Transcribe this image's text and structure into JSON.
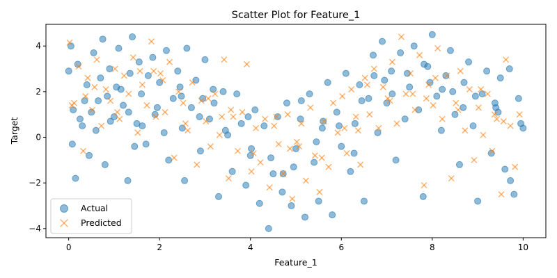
{
  "chart_data": {
    "type": "scatter",
    "title": "Scatter Plot for Feature_1",
    "xlabel": "Feature_1",
    "ylabel": "Target",
    "xlim": [
      -0.5,
      10.5
    ],
    "ylim": [
      -4.4,
      4.95
    ],
    "xticks": [
      0,
      2,
      4,
      6,
      8,
      10
    ],
    "yticks": [
      -4,
      -2,
      0,
      2,
      4
    ],
    "grid": false,
    "legend_position": "lower-left",
    "series": [
      {
        "name": "Actual",
        "marker": "circle",
        "color": "#1f77b4",
        "alpha": 0.5,
        "x": [
          0.0,
          0.05,
          0.1,
          0.15,
          0.2,
          0.3,
          0.35,
          0.4,
          0.45,
          0.5,
          0.55,
          0.6,
          0.7,
          0.75,
          0.8,
          0.85,
          0.9,
          1.0,
          1.05,
          1.1,
          1.2,
          1.3,
          1.35,
          1.4,
          1.5,
          1.55,
          1.6,
          1.7,
          1.75,
          1.85,
          1.9,
          2.0,
          2.1,
          2.15,
          2.2,
          2.3,
          2.4,
          2.5,
          2.55,
          2.6,
          2.7,
          2.8,
          2.9,
          3.0,
          3.1,
          3.2,
          3.3,
          3.4,
          3.5,
          3.6,
          3.7,
          3.8,
          3.9,
          4.0,
          4.1,
          4.2,
          4.3,
          4.4,
          4.5,
          4.6,
          4.7,
          4.8,
          4.9,
          5.0,
          5.1,
          5.2,
          5.3,
          5.4,
          5.5,
          5.6,
          5.7,
          5.8,
          5.9,
          6.0,
          6.1,
          6.2,
          6.3,
          6.4,
          6.5,
          6.6,
          6.7,
          6.8,
          6.9,
          7.0,
          7.1,
          7.2,
          7.3,
          7.4,
          7.5,
          7.6,
          7.7,
          7.8,
          7.9,
          8.0,
          8.1,
          8.2,
          8.3,
          8.4,
          8.5,
          8.6,
          8.7,
          8.8,
          8.9,
          9.0,
          9.1,
          9.2,
          9.3,
          9.4,
          9.5,
          9.6,
          9.7,
          9.8,
          9.9,
          10.0,
          0.25,
          0.65,
          1.15,
          1.45,
          1.95,
          2.45,
          2.95,
          3.45,
          3.95,
          4.45,
          4.95,
          5.45,
          5.95,
          6.45,
          6.95,
          7.45,
          7.95,
          8.45,
          8.95,
          9.45,
          9.95,
          0.08,
          1.62,
          3.18,
          4.72,
          6.28,
          7.82,
          9.38,
          0.92,
          2.48,
          4.02,
          5.58,
          7.12,
          8.68,
          1.32,
          2.88,
          5.12,
          6.72,
          8.22,
          9.72
        ],
        "y": [
          2.9,
          4.0,
          1.2,
          -1.8,
          3.2,
          0.5,
          1.6,
          2.3,
          -0.8,
          1.1,
          3.7,
          0.3,
          2.6,
          4.3,
          -1.2,
          1.8,
          3.0,
          0.9,
          2.2,
          3.9,
          1.4,
          -1.9,
          2.8,
          4.4,
          0.6,
          3.3,
          1.9,
          -0.3,
          2.7,
          3.5,
          1.0,
          2.4,
          0.2,
          3.8,
          -1.0,
          1.7,
          2.9,
          0.4,
          -1.9,
          3.9,
          1.3,
          2.5,
          -0.6,
          3.4,
          0.8,
          1.5,
          -2.6,
          2.0,
          0.1,
          -1.5,
          1.9,
          0.6,
          -2.1,
          -0.8,
          1.2,
          -2.9,
          0.5,
          -4.0,
          -1.6,
          0.9,
          -2.4,
          1.5,
          -3.0,
          -0.5,
          0.8,
          -3.5,
          1.9,
          -1.1,
          -2.8,
          0.7,
          2.4,
          -3.4,
          1.1,
          -0.4,
          2.8,
          -1.5,
          0.6,
          2.3,
          -2.8,
          1.7,
          3.6,
          0.2,
          4.2,
          1.5,
          2.9,
          -1.0,
          3.7,
          0.8,
          2.2,
          4.0,
          1.2,
          -2.6,
          3.1,
          4.5,
          1.8,
          0.3,
          2.7,
          3.8,
          1.0,
          -1.2,
          2.4,
          3.3,
          0.5,
          -2.8,
          1.9,
          2.9,
          -0.7,
          1.3,
          2.6,
          -1.4,
          3.0,
          -2.5,
          1.7,
          0.4,
          0.8,
          1.6,
          2.1,
          -0.4,
          1.3,
          2.2,
          1.7,
          0.3,
          0.9,
          -0.9,
          -1.3,
          -0.2,
          0.5,
          1.6,
          2.5,
          2.8,
          2.4,
          2.0,
          1.8,
          1.1,
          0.6,
          -0.3,
          0.5,
          2.1,
          -1.6,
          -0.7,
          3.2,
          1.5,
          0.7,
          1.8,
          -0.5,
          0.4,
          1.9,
          1.3,
          1.1,
          0.9,
          1.6,
          2.7,
          2.1,
          -1.9
        ]
      },
      {
        "name": "Predicted",
        "marker": "x",
        "color": "#ff7f0e",
        "alpha": 0.5,
        "x": [
          0.02,
          0.12,
          0.22,
          0.32,
          0.42,
          0.52,
          0.62,
          0.72,
          0.82,
          0.92,
          1.02,
          1.12,
          1.22,
          1.32,
          1.42,
          1.52,
          1.62,
          1.72,
          1.82,
          1.92,
          2.02,
          2.12,
          2.22,
          2.32,
          2.42,
          2.52,
          2.62,
          2.72,
          2.82,
          2.92,
          3.02,
          3.12,
          3.22,
          3.32,
          3.42,
          3.52,
          3.62,
          3.72,
          3.82,
          3.92,
          4.02,
          4.12,
          4.22,
          4.32,
          4.42,
          4.52,
          4.62,
          4.72,
          4.82,
          4.92,
          5.02,
          5.12,
          5.22,
          5.32,
          5.42,
          5.52,
          5.62,
          5.72,
          5.82,
          5.92,
          6.02,
          6.12,
          6.22,
          6.32,
          6.42,
          6.52,
          6.62,
          6.72,
          6.82,
          6.92,
          7.02,
          7.12,
          7.22,
          7.32,
          7.42,
          7.52,
          7.62,
          7.72,
          7.82,
          7.92,
          8.02,
          8.12,
          8.22,
          8.32,
          8.42,
          8.52,
          8.62,
          8.72,
          8.82,
          8.92,
          9.02,
          9.12,
          9.22,
          9.32,
          9.42,
          9.52,
          9.62,
          9.72,
          9.82,
          9.92,
          0.07,
          0.57,
          1.07,
          1.57,
          2.07,
          2.57,
          3.07,
          3.57,
          4.07,
          4.57,
          5.07,
          5.57,
          6.07,
          6.57,
          7.07,
          7.57,
          8.07,
          8.57,
          9.07,
          9.57,
          0.37,
          1.87,
          3.37,
          4.87,
          6.37,
          7.87,
          9.37
        ],
        "y": [
          4.15,
          1.5,
          3.1,
          -0.6,
          2.6,
          1.2,
          3.4,
          0.5,
          2.1,
          1.6,
          3.0,
          0.8,
          2.7,
          1.9,
          3.5,
          0.2,
          2.3,
          1.4,
          4.2,
          0.9,
          2.8,
          1.1,
          3.3,
          -0.9,
          2.0,
          1.5,
          0.3,
          2.4,
          -1.2,
          1.6,
          0.7,
          -0.4,
          1.9,
          0.1,
          3.4,
          -1.8,
          0.9,
          -0.6,
          1.1,
          3.2,
          -1.5,
          0.4,
          -1.1,
          0.8,
          -2.2,
          0.5,
          -0.3,
          -1.6,
          1.0,
          -2.7,
          -0.2,
          0.6,
          -1.9,
          1.3,
          -0.8,
          -2.4,
          0.7,
          -1.3,
          1.5,
          0.2,
          1.8,
          -0.7,
          2.1,
          0.9,
          -1.2,
          2.6,
          1.0,
          3.0,
          0.4,
          2.2,
          1.7,
          3.3,
          0.6,
          4.4,
          1.9,
          2.8,
          1.2,
          3.6,
          -2.1,
          2.3,
          1.4,
          3.9,
          0.8,
          2.7,
          -1.8,
          1.5,
          2.9,
          0.3,
          2.1,
          -1.0,
          1.3,
          0.1,
          1.9,
          -0.6,
          0.8,
          -2.5,
          3.4,
          0.5,
          -1.3,
          1.0,
          1.4,
          2.2,
          1.1,
          2.9,
          2.5,
          0.6,
          1.7,
          1.2,
          -0.7,
          0.9,
          -0.4,
          -0.9,
          0.4,
          2.3,
          1.6,
          1.9,
          2.6,
          1.2,
          2.1,
          0.7,
          1.8,
          2.9,
          0.9,
          -0.5,
          0.3,
          1.7,
          1.0
        ]
      }
    ]
  }
}
